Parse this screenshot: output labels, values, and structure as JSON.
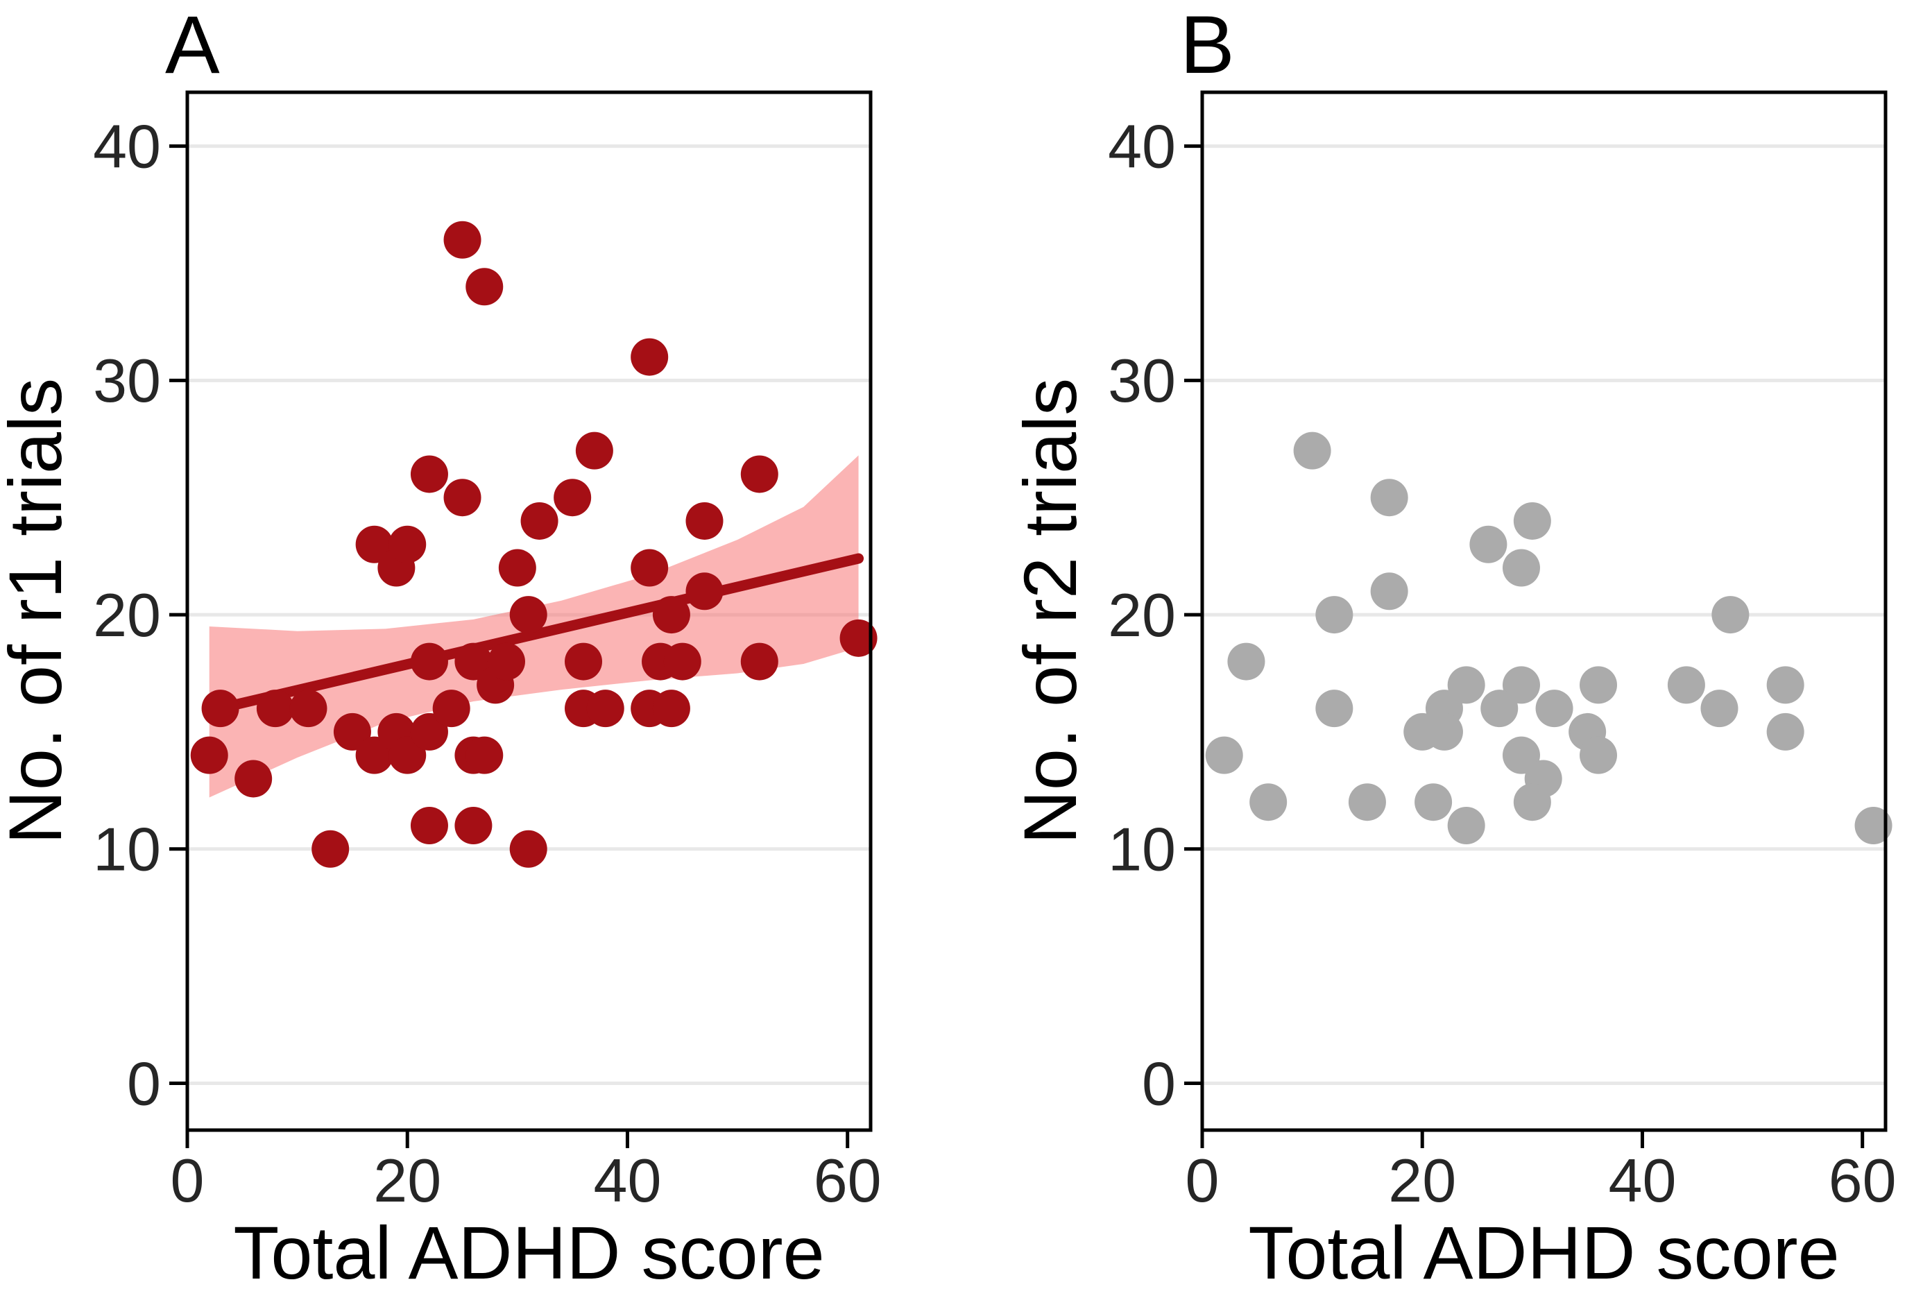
{
  "figure": {
    "kind": "two-panel scatter figure",
    "background": "#ffffff",
    "panel_tags": [
      "A",
      "B"
    ],
    "shared_x_label": "Total ADHD score"
  },
  "styles": {
    "border_color": "#000000",
    "grid_color": "#e8e8e8",
    "tick_color": "#000000",
    "tick_label_color": "#262626",
    "axis_title_color": "#000000",
    "panel_a_point_color": "#a50f15",
    "panel_a_line_color": "#a50f15",
    "panel_a_band_color": "rgba(247,105,105,0.5)",
    "panel_b_point_color": "#ababab"
  },
  "chart_data": [
    {
      "type": "scatter",
      "panel_tag": "A",
      "xlabel": "Total ADHD score",
      "ylabel": "No. of r1 trials",
      "xlim": [
        0,
        62.1
      ],
      "ylim": [
        -2,
        42.3
      ],
      "xticks": [
        0,
        20,
        40,
        60
      ],
      "yticks": [
        0,
        10,
        20,
        30,
        40
      ],
      "grid": "horizontal-major-only",
      "legend": "none",
      "series": [
        {
          "name": "confidence-band",
          "kind": "band",
          "color": "rgba(247,105,105,0.5)",
          "upper": [
            [
              2,
              19.5
            ],
            [
              10,
              19.3
            ],
            [
              18,
              19.4
            ],
            [
              26,
              19.8
            ],
            [
              34,
              20.6
            ],
            [
              42,
              21.7
            ],
            [
              50,
              23.2
            ],
            [
              56,
              24.6
            ],
            [
              61,
              26.8
            ]
          ],
          "lower": [
            [
              2,
              12.2
            ],
            [
              10,
              13.9
            ],
            [
              18,
              15.4
            ],
            [
              26,
              16.3
            ],
            [
              34,
              16.8
            ],
            [
              42,
              17.2
            ],
            [
              50,
              17.5
            ],
            [
              56,
              17.9
            ],
            [
              61,
              18.6
            ]
          ]
        },
        {
          "name": "linear-fit-line",
          "kind": "line",
          "color": "#a50f15",
          "width": 15,
          "points": [
            [
              2,
              15.9
            ],
            [
              61,
              22.4
            ]
          ]
        },
        {
          "name": "participants-r1",
          "kind": "points",
          "color": "#a50f15",
          "radius": 27,
          "points": [
            [
              2,
              14
            ],
            [
              3,
              16
            ],
            [
              6,
              13
            ],
            [
              8,
              16
            ],
            [
              11,
              16
            ],
            [
              13,
              10
            ],
            [
              15,
              15
            ],
            [
              17,
              14
            ],
            [
              19,
              15
            ],
            [
              20,
              14
            ],
            [
              22,
              15
            ],
            [
              24,
              16
            ],
            [
              26,
              14
            ],
            [
              27,
              14
            ],
            [
              17,
              23
            ],
            [
              19,
              22
            ],
            [
              20,
              23
            ],
            [
              22,
              18
            ],
            [
              26,
              18
            ],
            [
              28,
              17
            ],
            [
              29,
              18
            ],
            [
              22,
              26
            ],
            [
              25,
              25
            ],
            [
              22,
              11
            ],
            [
              26,
              11
            ],
            [
              31,
              10
            ],
            [
              25,
              36
            ],
            [
              27,
              34
            ],
            [
              30,
              22
            ],
            [
              31,
              20
            ],
            [
              32,
              24
            ],
            [
              35,
              25
            ],
            [
              37,
              27
            ],
            [
              36,
              18
            ],
            [
              36,
              16
            ],
            [
              38,
              16
            ],
            [
              42,
              31
            ],
            [
              42,
              22
            ],
            [
              42,
              16
            ],
            [
              44,
              16
            ],
            [
              43,
              18
            ],
            [
              45,
              18
            ],
            [
              44,
              20
            ],
            [
              47,
              21
            ],
            [
              47,
              24
            ],
            [
              52,
              26
            ],
            [
              52,
              18
            ],
            [
              61,
              19
            ]
          ]
        }
      ]
    },
    {
      "type": "scatter",
      "panel_tag": "B",
      "xlabel": "Total ADHD score",
      "ylabel": "No. of r2 trials",
      "xlim": [
        0,
        62.1
      ],
      "ylim": [
        -2,
        42.3
      ],
      "xticks": [
        0,
        20,
        40,
        60
      ],
      "yticks": [
        0,
        10,
        20,
        30,
        40
      ],
      "grid": "horizontal-major-only",
      "legend": "none",
      "series": [
        {
          "name": "participants-r2",
          "kind": "points",
          "color": "#ababab",
          "radius": 27,
          "points": [
            [
              10,
              27
            ],
            [
              17,
              25
            ],
            [
              30,
              24
            ],
            [
              26,
              23
            ],
            [
              29,
              22
            ],
            [
              17,
              21
            ],
            [
              12,
              20
            ],
            [
              48,
              20
            ],
            [
              4,
              18
            ],
            [
              24,
              17
            ],
            [
              29,
              17
            ],
            [
              36,
              17
            ],
            [
              44,
              17
            ],
            [
              53,
              17
            ],
            [
              12,
              16
            ],
            [
              22,
              16
            ],
            [
              27,
              16
            ],
            [
              32,
              16
            ],
            [
              47,
              16
            ],
            [
              20,
              15
            ],
            [
              22,
              15
            ],
            [
              35,
              15
            ],
            [
              53,
              15
            ],
            [
              2,
              14
            ],
            [
              29,
              14
            ],
            [
              36,
              14
            ],
            [
              31,
              13
            ],
            [
              6,
              12
            ],
            [
              15,
              12
            ],
            [
              21,
              12
            ],
            [
              30,
              12
            ],
            [
              24,
              11
            ],
            [
              61,
              11
            ]
          ]
        }
      ]
    }
  ]
}
